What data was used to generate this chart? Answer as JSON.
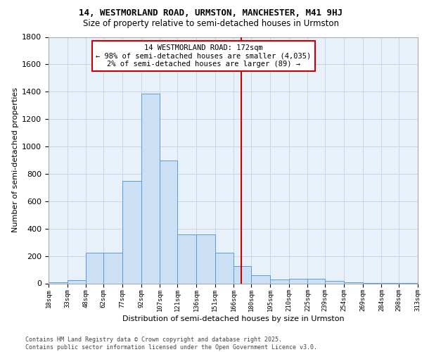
{
  "title_line1": "14, WESTMORLAND ROAD, URMSTON, MANCHESTER, M41 9HJ",
  "title_line2": "Size of property relative to semi-detached houses in Urmston",
  "xlabel": "Distribution of semi-detached houses by size in Urmston",
  "ylabel": "Number of semi-detached properties",
  "footer_line1": "Contains HM Land Registry data © Crown copyright and database right 2025.",
  "footer_line2": "Contains public sector information licensed under the Open Government Licence v3.0.",
  "annotation_line1": "14 WESTMORLAND ROAD: 172sqm",
  "annotation_line2": "← 98% of semi-detached houses are smaller (4,035)",
  "annotation_line3": "2% of semi-detached houses are larger (89) →",
  "property_size": 172,
  "bins": [
    18,
    33,
    48,
    62,
    77,
    92,
    107,
    121,
    136,
    151,
    166,
    180,
    195,
    210,
    225,
    239,
    254,
    269,
    284,
    298,
    313
  ],
  "counts": [
    10,
    25,
    225,
    225,
    750,
    1385,
    895,
    360,
    360,
    225,
    125,
    60,
    30,
    35,
    35,
    20,
    8,
    5,
    5,
    3
  ],
  "bar_facecolor": "#cce0f5",
  "bar_edgecolor": "#5b9bd5",
  "vline_color": "#cc0000",
  "grid_color": "#c8d4e8",
  "bg_color": "#e8f0fa",
  "annotation_box_color": "#cc0000",
  "ylim": [
    0,
    1800
  ],
  "yticks": [
    0,
    200,
    400,
    600,
    800,
    1000,
    1200,
    1400,
    1600,
    1800
  ]
}
